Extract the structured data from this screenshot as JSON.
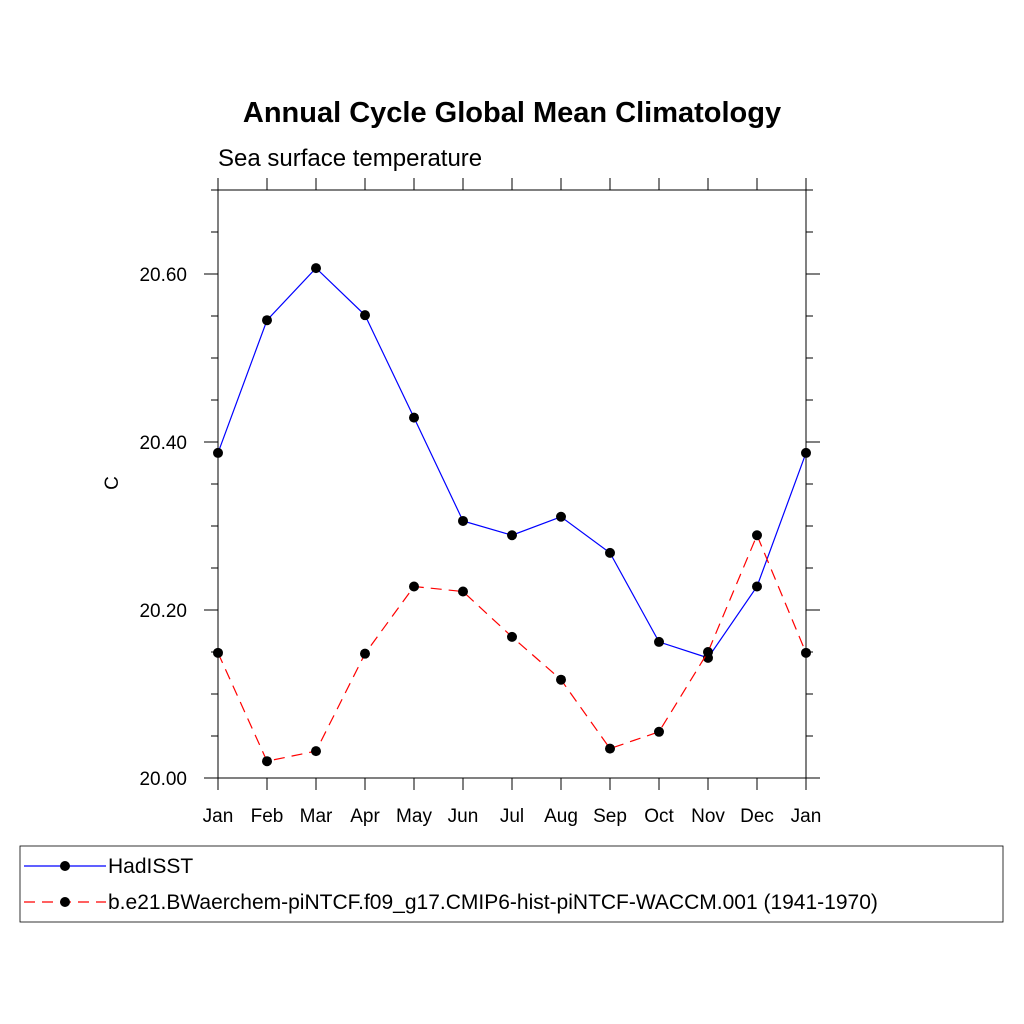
{
  "chart_data": {
    "type": "line",
    "title": "Annual Cycle Global Mean Climatology",
    "subtitle": "Sea surface temperature",
    "xlabel": "",
    "ylabel": "C",
    "categories": [
      "Jan",
      "Feb",
      "Mar",
      "Apr",
      "May",
      "Jun",
      "Jul",
      "Aug",
      "Sep",
      "Oct",
      "Nov",
      "Dec",
      "Jan"
    ],
    "ylim": [
      20.0,
      20.7
    ],
    "yticks": [
      {
        "value": 20.0,
        "label": "20.00"
      },
      {
        "value": 20.2,
        "label": "20.20"
      },
      {
        "value": 20.4,
        "label": "20.40"
      },
      {
        "value": 20.6,
        "label": "20.60"
      }
    ],
    "yminor_step": 0.05,
    "legend_position": "bottom",
    "series": [
      {
        "name": "HadISST",
        "color": "#0000ff",
        "dash": "solid",
        "values": [
          20.387,
          20.545,
          20.607,
          20.551,
          20.429,
          20.306,
          20.289,
          20.311,
          20.268,
          20.162,
          20.143,
          20.228,
          20.387
        ]
      },
      {
        "name": "b.e21.BWaerchem-piNTCF.f09_g17.CMIP6-hist-piNTCF-WACCM.001 (1941-1970)",
        "color": "#ff0000",
        "dash": "dashed",
        "values": [
          20.149,
          20.02,
          20.032,
          20.148,
          20.228,
          20.222,
          20.168,
          20.117,
          20.035,
          20.055,
          20.15,
          20.289,
          20.149
        ]
      }
    ]
  }
}
